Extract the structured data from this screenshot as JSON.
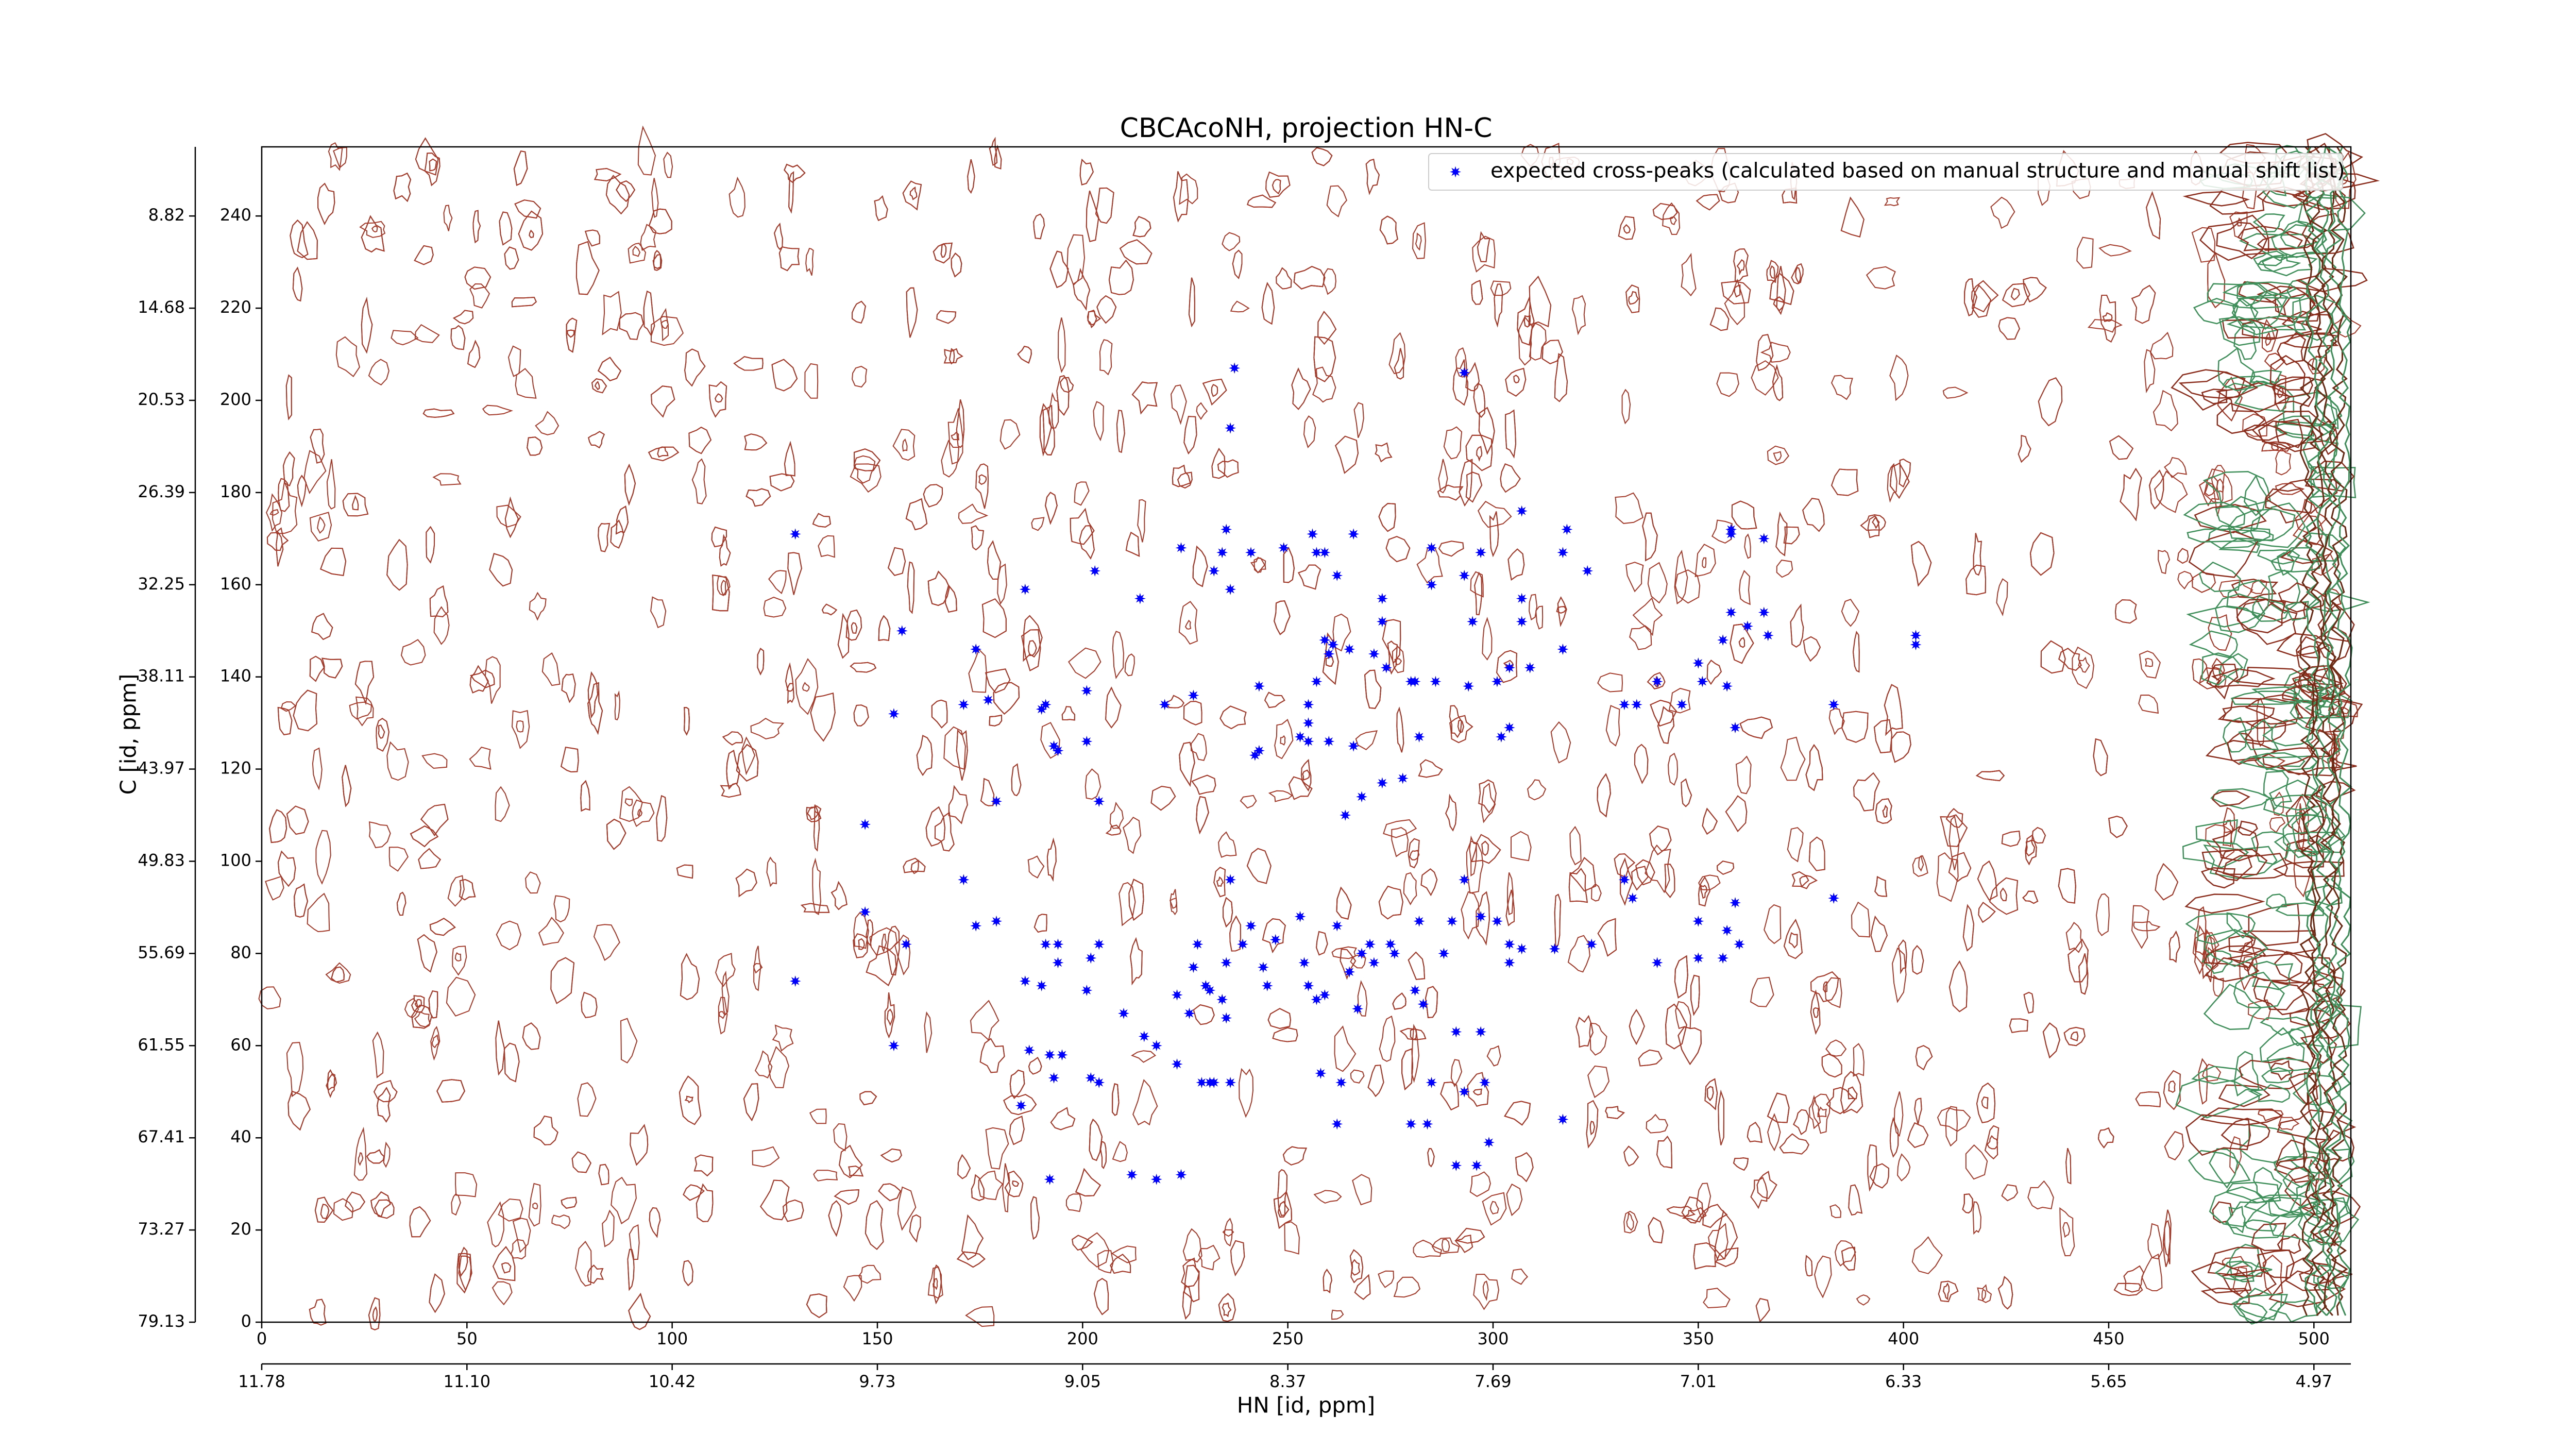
{
  "chart_data": {
    "type": "scatter",
    "title": "CBCAcoNH, projection HN-C",
    "x_label": "HN [id, ppm]",
    "y_label": "C [id, ppm]",
    "xlim": [
      0,
      509
    ],
    "ylim": [
      0,
      255
    ],
    "xticks": [
      0,
      50,
      100,
      150,
      200,
      250,
      300,
      350,
      400,
      450,
      500
    ],
    "yticks": [
      0,
      20,
      40,
      60,
      80,
      100,
      120,
      140,
      160,
      180,
      200,
      220,
      240
    ],
    "x2ticks": [
      {
        "value": 0,
        "label": "11.78"
      },
      {
        "value": 50,
        "label": "11.10"
      },
      {
        "value": 100,
        "label": "10.42"
      },
      {
        "value": 150,
        "label": "9.73"
      },
      {
        "value": 200,
        "label": "9.05"
      },
      {
        "value": 250,
        "label": "8.37"
      },
      {
        "value": 300,
        "label": "7.69"
      },
      {
        "value": 350,
        "label": "7.01"
      },
      {
        "value": 400,
        "label": "6.33"
      },
      {
        "value": 450,
        "label": "5.65"
      },
      {
        "value": 500,
        "label": "4.97"
      }
    ],
    "y2ticks": [
      {
        "value": 0,
        "label": "79.13"
      },
      {
        "value": 20,
        "label": "73.27"
      },
      {
        "value": 40,
        "label": "67.41"
      },
      {
        "value": 60,
        "label": "61.55"
      },
      {
        "value": 80,
        "label": "55.69"
      },
      {
        "value": 100,
        "label": "49.83"
      },
      {
        "value": 120,
        "label": "43.97"
      },
      {
        "value": 140,
        "label": "38.11"
      },
      {
        "value": 160,
        "label": "32.25"
      },
      {
        "value": 180,
        "label": "26.39"
      },
      {
        "value": 200,
        "label": "20.53"
      },
      {
        "value": 220,
        "label": "14.68"
      },
      {
        "value": 240,
        "label": "8.82"
      }
    ],
    "legend": "upper right",
    "series": [
      {
        "name": "expected cross-peaks (calculated based on manual structure and manual shift list)",
        "color": "#0000ff",
        "x": [
          130,
          237,
          236,
          293,
          224,
          235,
          234,
          232,
          236,
          241,
          249,
          256,
          257,
          259,
          266,
          262,
          285,
          297,
          307,
          318,
          317,
          323,
          293,
          285,
          273,
          214,
          203,
          186,
          156,
          174,
          177,
          171,
          191,
          190,
          201,
          220,
          227,
          243,
          259,
          260,
          257,
          255,
          261,
          265,
          271,
          273,
          274,
          280,
          281,
          286,
          295,
          307,
          307,
          301,
          304,
          309,
          294,
          317,
          340,
          332,
          335,
          346,
          350,
          351,
          358,
          358,
          366,
          358,
          362,
          366,
          367,
          356,
          357,
          359,
          383,
          403,
          403,
          154,
          147,
          193,
          194,
          201,
          204,
          179,
          253,
          255,
          243,
          242,
          255,
          260,
          266,
          273,
          278,
          268,
          264,
          302,
          304,
          282,
          147,
          157,
          171,
          174,
          179,
          186,
          191,
          194,
          194,
          190,
          202,
          201,
          204,
          210,
          187,
          192,
          195,
          193,
          202,
          204,
          215,
          218,
          223,
          227,
          228,
          226,
          230,
          231,
          236,
          239,
          234,
          235,
          235,
          241,
          244,
          245,
          247,
          253,
          254,
          257,
          255,
          259,
          262,
          265,
          267,
          270,
          271,
          275,
          276,
          268,
          281,
          282,
          283,
          288,
          290,
          293,
          297,
          301,
          304,
          304,
          307,
          315,
          291,
          297,
          223,
          229,
          231,
          232,
          236,
          258,
          263,
          285,
          293,
          298,
          262,
          280,
          284,
          299,
          317,
          324,
          334,
          332,
          340,
          350,
          350,
          357,
          359,
          360,
          356,
          383,
          130,
          154,
          185,
          192,
          212,
          218,
          224,
          291,
          296
        ],
        "y": [
          171,
          207,
          194,
          206,
          168,
          172,
          167,
          163,
          159,
          167,
          168,
          171,
          167,
          167,
          171,
          162,
          168,
          167,
          176,
          172,
          167,
          163,
          162,
          160,
          157,
          157,
          163,
          159,
          150,
          146,
          135,
          134,
          134,
          133,
          137,
          134,
          136,
          138,
          148,
          145,
          139,
          134,
          147,
          146,
          145,
          152,
          142,
          139,
          139,
          139,
          152,
          157,
          152,
          139,
          142,
          142,
          138,
          146,
          139,
          134,
          134,
          134,
          143,
          139,
          171,
          172,
          170,
          154,
          151,
          154,
          149,
          148,
          138,
          129,
          134,
          149,
          147,
          132,
          108,
          125,
          124,
          126,
          113,
          113,
          127,
          126,
          124,
          123,
          130,
          126,
          125,
          117,
          118,
          114,
          110,
          127,
          129,
          127,
          89,
          82,
          96,
          86,
          87,
          74,
          82,
          82,
          78,
          73,
          79,
          72,
          82,
          67,
          59,
          58,
          58,
          53,
          53,
          52,
          62,
          60,
          71,
          77,
          82,
          67,
          73,
          72,
          96,
          82,
          70,
          66,
          78,
          86,
          77,
          73,
          83,
          88,
          78,
          70,
          73,
          71,
          86,
          76,
          68,
          82,
          78,
          82,
          80,
          80,
          72,
          87,
          69,
          80,
          87,
          96,
          88,
          87,
          82,
          78,
          81,
          81,
          63,
          63,
          56,
          52,
          52,
          52,
          52,
          54,
          52,
          52,
          50,
          52,
          43,
          43,
          43,
          39,
          44,
          82,
          92,
          96,
          78,
          87,
          79,
          85,
          91,
          82,
          79,
          92,
          74,
          60,
          47,
          31,
          32,
          31,
          32,
          34,
          34
        ]
      }
    ]
  }
}
